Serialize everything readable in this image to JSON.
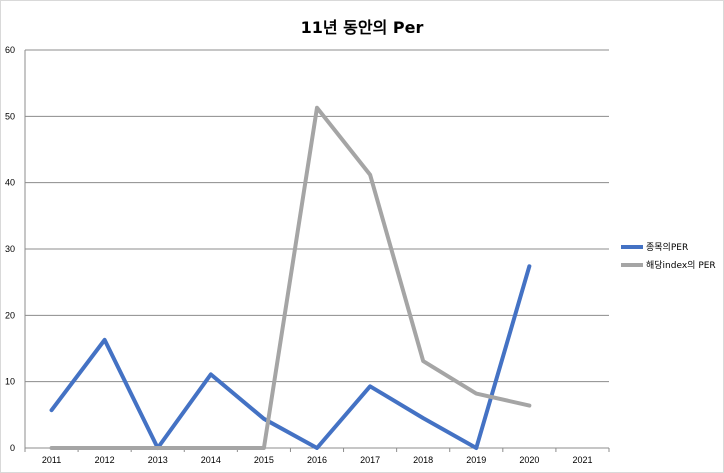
{
  "chart_data": {
    "type": "line",
    "title": "11년 동안의 Per",
    "xlabel": "",
    "ylabel": "",
    "categories": [
      "2011",
      "2012",
      "2013",
      "2014",
      "2015",
      "2016",
      "2017",
      "2018",
      "2019",
      "2020",
      "2021"
    ],
    "ylim": [
      0,
      60
    ],
    "yticks": [
      0,
      10,
      20,
      30,
      40,
      50,
      60
    ],
    "grid": true,
    "legend_position": "right",
    "series": [
      {
        "name": "종목의PER",
        "color": "#4472C4",
        "values": [
          5.7,
          16.3,
          0,
          11.1,
          4.4,
          0,
          9.3,
          4.5,
          0,
          27.4,
          null
        ]
      },
      {
        "name": "해당index의 PER",
        "color": "#A5A5A5",
        "values": [
          0,
          0,
          0,
          0,
          0,
          51.3,
          41.2,
          13.1,
          8.2,
          6.4,
          null
        ]
      }
    ]
  }
}
